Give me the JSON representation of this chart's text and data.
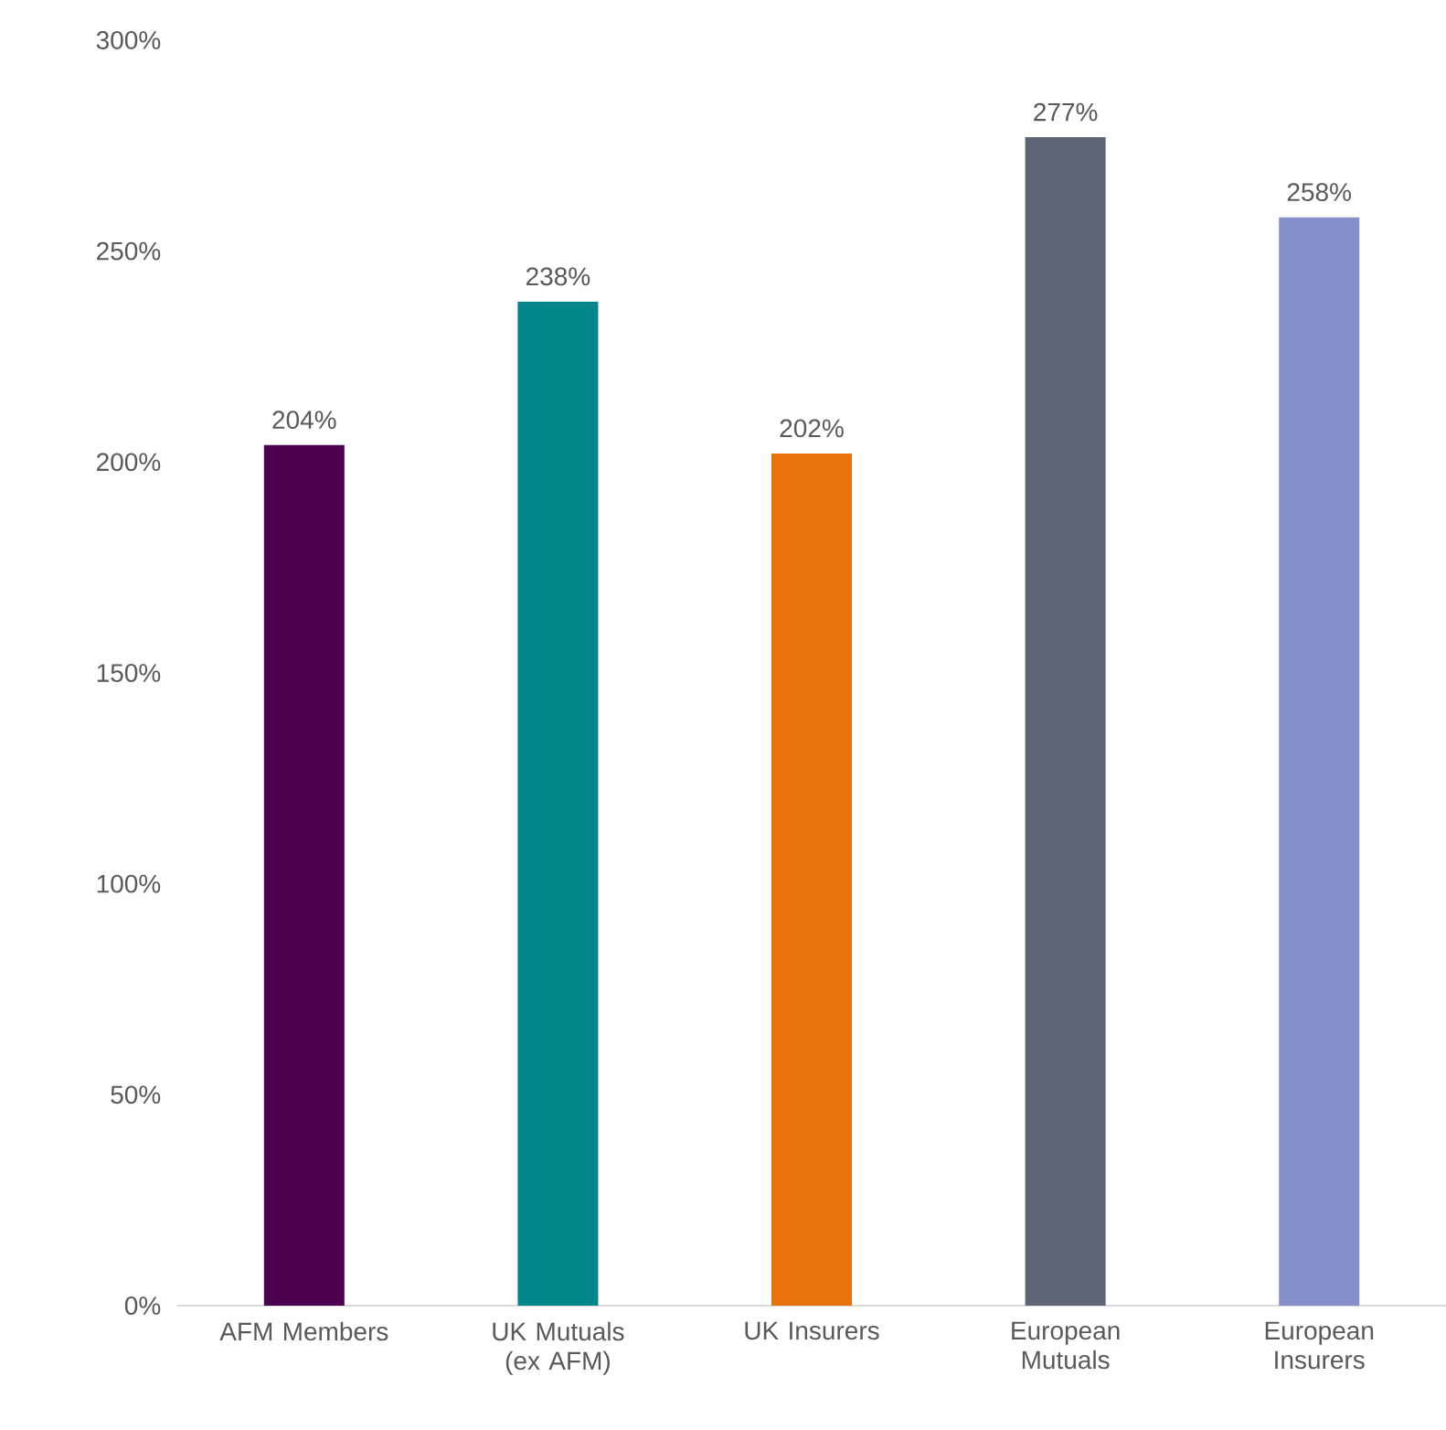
{
  "chart_data": {
    "type": "bar",
    "categories": [
      "AFM Members",
      "UK Mutuals (ex AFM)",
      "UK Insurers",
      "European Mutuals",
      "European Insurers"
    ],
    "values": [
      204,
      238,
      202,
      277,
      258
    ],
    "colors": [
      "#4b0050",
      "#00868b",
      "#e8720c",
      "#5d6475",
      "#8890cc"
    ],
    "value_labels": [
      "204%",
      "238%",
      "202%",
      "277%",
      "258%"
    ],
    "ylim": [
      0,
      300
    ],
    "yticks": [
      {
        "value": 0,
        "label": "0%"
      },
      {
        "value": 50,
        "label": "50%"
      },
      {
        "value": 100,
        "label": "100%"
      },
      {
        "value": 150,
        "label": "150%"
      },
      {
        "value": 200,
        "label": "200%"
      },
      {
        "value": 250,
        "label": "250%"
      },
      {
        "value": 300,
        "label": "300%"
      }
    ]
  }
}
